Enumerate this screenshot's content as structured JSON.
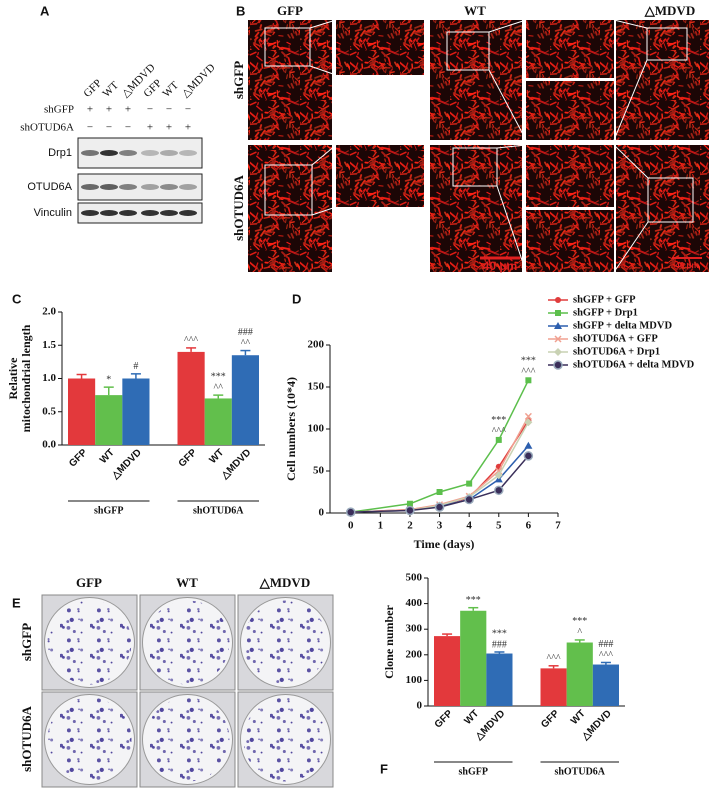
{
  "panels": {
    "A": {
      "letter": "A",
      "lanes": [
        "GFP",
        "WT",
        "△MDVD",
        "GFP",
        "WT",
        "△MDVD"
      ],
      "conditions": [
        {
          "name": "shGFP",
          "marks": [
            "+",
            "+",
            "+",
            "−",
            "−",
            "−"
          ]
        },
        {
          "name": "shOTUD6A",
          "marks": [
            "−",
            "−",
            "−",
            "+",
            "+",
            "+"
          ]
        }
      ],
      "blots": [
        "Drp1",
        "OTUD6A",
        "Vinculin"
      ]
    },
    "B": {
      "letter": "B",
      "columns": [
        "GFP",
        "WT",
        "△MDVD"
      ],
      "rows": [
        "shGFP",
        "shOTUD6A"
      ],
      "scale_bars": [
        "40 μm",
        "40 μm"
      ]
    },
    "E": {
      "letter": "E",
      "columns": [
        "GFP",
        "WT",
        "△MDVD"
      ],
      "rows": [
        "shGFP",
        "shOTUD6A"
      ]
    }
  },
  "chart_data": [
    {
      "type": "bar",
      "panel": "C",
      "ylabel_lines": [
        "Relative",
        "mitochondrial length"
      ],
      "ylim": [
        0,
        2
      ],
      "yticks": [
        {
          "value": 0,
          "label": "0.0"
        },
        0.5,
        {
          "value": 1,
          "label": "1.0"
        },
        1.5,
        {
          "value": 2,
          "label": "2.0"
        }
      ],
      "colors": [
        "#e3393c",
        "#62bf4c",
        "#2f6cb5"
      ],
      "groups": [
        {
          "name": "shGFP",
          "categories": [
            "GFP",
            "WT",
            "△MDVD"
          ],
          "values": [
            1.0,
            0.75,
            1.0
          ],
          "errors": [
            0.06,
            0.12,
            0.07
          ],
          "annotations": [
            [],
            [
              "*"
            ],
            [
              "#"
            ]
          ]
        },
        {
          "name": "shOTUD6A",
          "categories": [
            "GFP",
            "WT",
            "△MDVD"
          ],
          "values": [
            1.4,
            0.7,
            1.35
          ],
          "errors": [
            0.06,
            0.05,
            0.07
          ],
          "annotations": [
            [
              "^^^"
            ],
            [
              "***",
              "^^"
            ],
            [
              "###",
              "^^"
            ]
          ]
        }
      ]
    },
    {
      "type": "line",
      "panel": "D",
      "ylabel": "Cell numbers (10*4)",
      "xlabel": "Time (days)",
      "x": [
        0,
        2,
        3,
        4,
        5,
        6
      ],
      "xlim": [
        -0.7,
        7
      ],
      "xticks": [
        0,
        1,
        2,
        3,
        4,
        5,
        6,
        7
      ],
      "ylim": [
        0,
        200
      ],
      "yticks": [
        0,
        50,
        100,
        150,
        200
      ],
      "legend": "upper-right",
      "series": [
        {
          "name": "shGFP + GFP",
          "color": "#e03c3c",
          "marker": "circle",
          "values": [
            1,
            4,
            9,
            18,
            55,
            110
          ]
        },
        {
          "name": "shGFP + Drp1",
          "color": "#5cbf4c",
          "marker": "square",
          "values": [
            1,
            11,
            25,
            35,
            87,
            158
          ]
        },
        {
          "name": "shGFP + delta MDVD",
          "color": "#2d5fae",
          "marker": "triangle",
          "values": [
            1,
            3,
            8,
            16,
            40,
            80
          ]
        },
        {
          "name": "shOTUD6A + GFP",
          "color": "#f0a090",
          "marker": "cross",
          "values": [
            1,
            4,
            10,
            20,
            50,
            115
          ]
        },
        {
          "name": "shOTUD6A + Drp1",
          "color": "#c9d2b4",
          "marker": "diamond",
          "values": [
            1,
            3,
            9,
            19,
            45,
            108
          ]
        },
        {
          "name": "shOTUD6A + delta MDVD",
          "color": "#3a2f5a",
          "marker": "ring",
          "values": [
            1,
            3,
            7,
            16,
            27,
            68
          ]
        }
      ],
      "annotations": [
        {
          "x": 5,
          "lines": [
            "***",
            "^^^"
          ]
        },
        {
          "x": 6,
          "lines": [
            "***",
            "^^^"
          ]
        }
      ]
    },
    {
      "type": "bar",
      "panel": "F",
      "ylabel": "Clone number",
      "ylim": [
        0,
        500
      ],
      "yticks": [
        0,
        100,
        200,
        300,
        400,
        500
      ],
      "colors": [
        "#e3393c",
        "#62bf4c",
        "#2f6cb5"
      ],
      "groups": [
        {
          "name": "shGFP",
          "categories": [
            "GFP",
            "WT",
            "△MDVD"
          ],
          "values": [
            273,
            372,
            205
          ],
          "errors": [
            8,
            12,
            6
          ],
          "annotations": [
            [],
            [
              "***"
            ],
            [
              "***",
              "###"
            ]
          ]
        },
        {
          "name": "shOTUD6A",
          "categories": [
            "GFP",
            "WT",
            "△MDVD"
          ],
          "values": [
            147,
            248,
            162
          ],
          "errors": [
            10,
            10,
            8
          ],
          "annotations": [
            [
              "^^^"
            ],
            [
              "***",
              "^"
            ],
            [
              "###",
              "^^^"
            ]
          ]
        }
      ]
    }
  ]
}
